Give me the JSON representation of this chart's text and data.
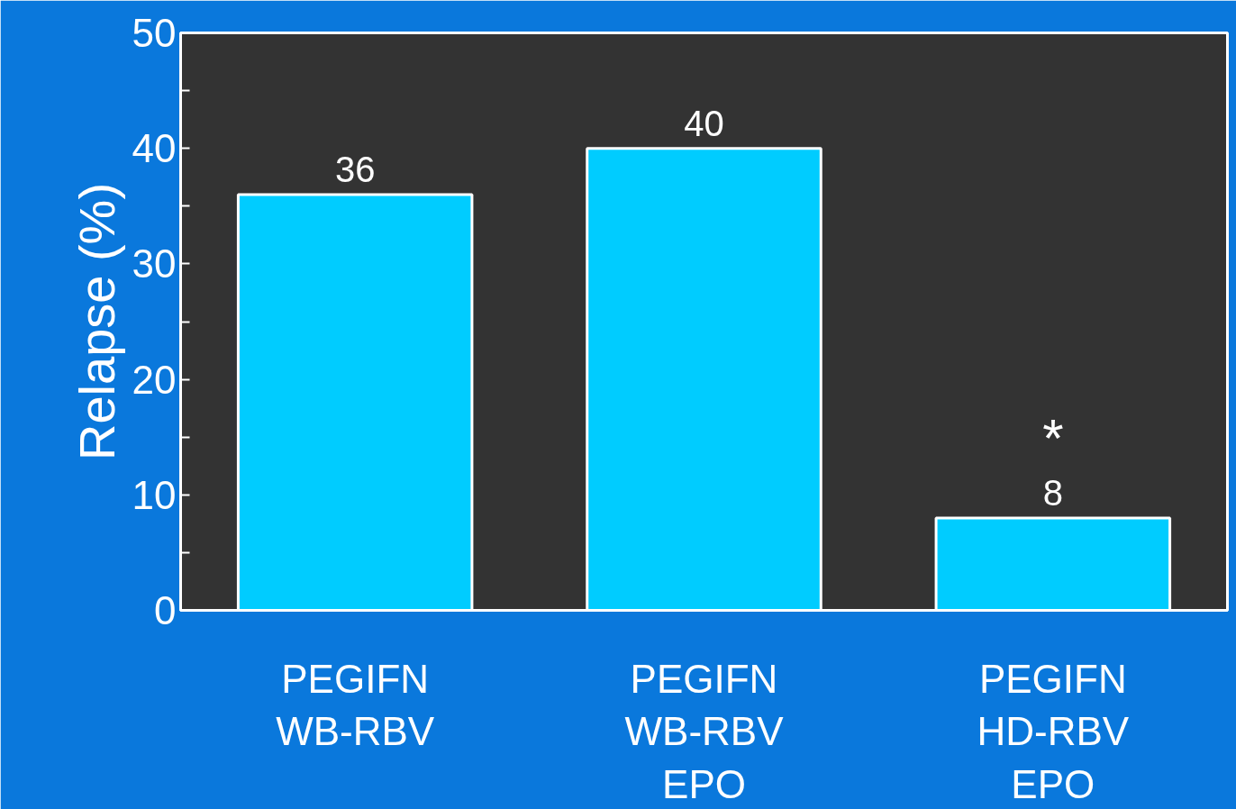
{
  "chart_data": {
    "type": "bar",
    "ylabel": "Relapse (%)",
    "categories": [
      "PEGIFN\nWB-RBV",
      "PEGIFN\nWB-RBV\nEPO",
      "PEGIFN\nHD-RBV\nEPO"
    ],
    "values": [
      36,
      40,
      8
    ],
    "color": "#00ccff",
    "data_labels": true,
    "ylim": [
      0,
      50
    ],
    "yticks": [
      0,
      {
        "value": 5,
        "label": null
      },
      10,
      {
        "value": 15,
        "label": null
      },
      20,
      {
        "value": 25,
        "label": null
      },
      30,
      {
        "value": 35,
        "label": null
      },
      40,
      {
        "value": 45,
        "label": null
      },
      50
    ],
    "annotations": [
      {
        "text": "*",
        "x": "PEGIFN\nHD-RBV\nEPO",
        "y": 8
      }
    ],
    "grid": false
  }
}
